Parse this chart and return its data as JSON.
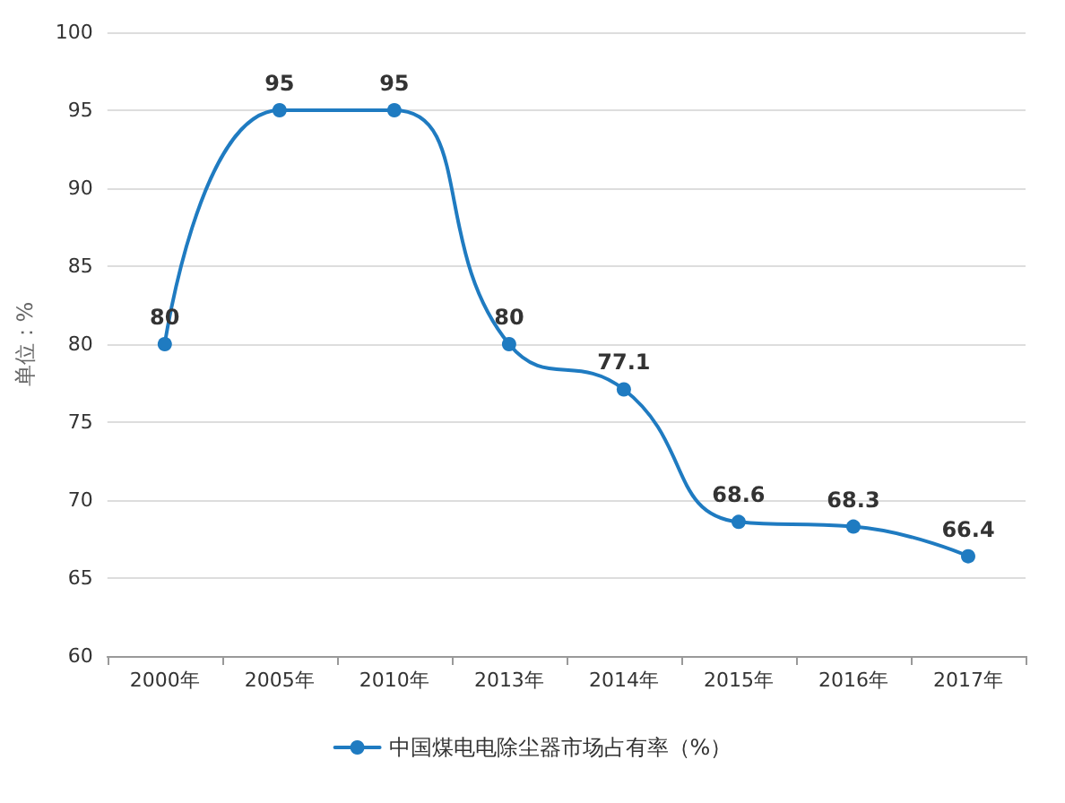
{
  "chart_data": {
    "type": "line",
    "ylabel": "单位：%",
    "categories": [
      "2000年",
      "2005年",
      "2010年",
      "2013年",
      "2014年",
      "2015年",
      "2016年",
      "2017年"
    ],
    "series": [
      {
        "name": "中国煤电电除尘器市场占有率（%）",
        "color": "#1f7bc1",
        "values": [
          80,
          95,
          95,
          80,
          77.1,
          68.6,
          68.3,
          66.4
        ]
      }
    ],
    "ylim": [
      60,
      100
    ],
    "yticks": [
      60,
      65,
      70,
      75,
      80,
      85,
      90,
      95,
      100
    ],
    "grid": "y",
    "legend": "bottom",
    "marker": "circle",
    "line_style": "solid",
    "data_labels": true
  }
}
